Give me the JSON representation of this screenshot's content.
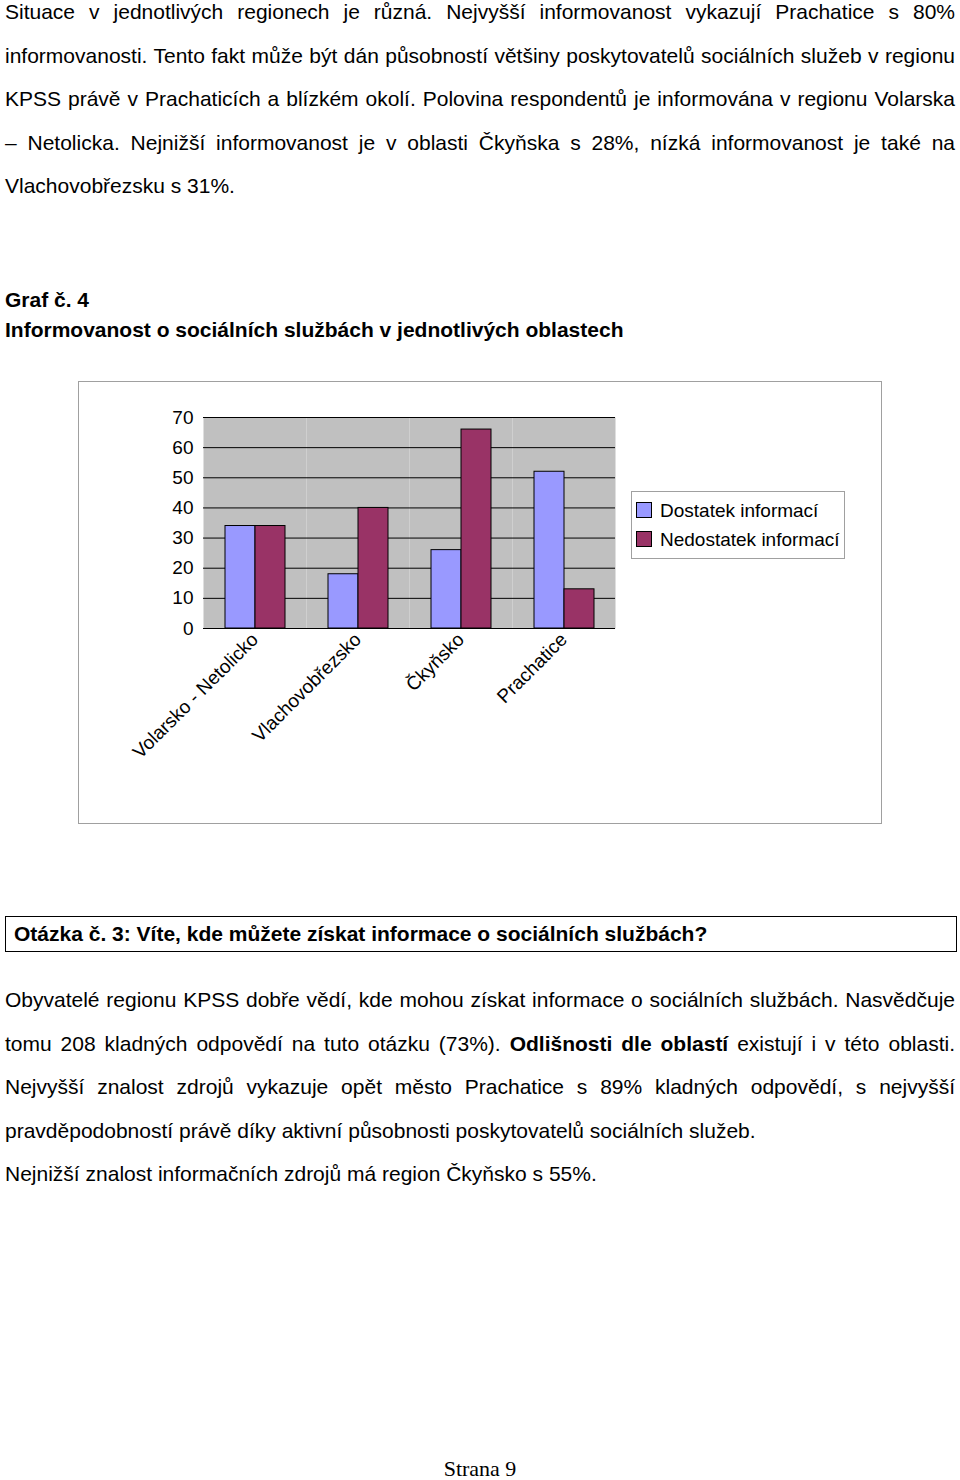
{
  "paragraphs_before": [
    [
      {
        "text": "Situace v jednotlivých regionech je různá. Nejvyšší informovanost vykazují Prachatice s 80% informovanosti. Tento fakt může být dán působností většiny poskytovatelů sociálních služeb v regionu KPSS právě v Prachaticích a blízkém okolí. Polovina respondentů je informována v regionu Volarska – Netolicka. Nejnižší informovanost je v oblasti Čkyňska s 28%, nízká informovanost je také na Vlachovobřezsku s 31%.",
        "bold": false
      }
    ]
  ],
  "figure_label": "Graf č. 4",
  "chart_data": {
    "type": "bar",
    "title": "Informovanost o sociálních službách v jednotlivých oblastech",
    "categories": [
      "Volarsko - Netolicko",
      "Vlachovobřezsko",
      "Čkyňsko",
      "Prachatice"
    ],
    "series": [
      {
        "name": "Dostatek informací",
        "color": "#9999ff",
        "values": [
          34,
          18,
          26,
          52
        ]
      },
      {
        "name": "Nedostatek informací",
        "color": "#993366",
        "values": [
          34,
          40,
          66,
          13
        ]
      }
    ],
    "ylim": [
      0,
      70
    ],
    "yticks": [
      0,
      10,
      20,
      30,
      40,
      50,
      60,
      70
    ],
    "grid": true,
    "legend": "right"
  },
  "question": "Otázka č. 3: Víte, kde můžete získat informace o sociálních službách?",
  "paragraphs_after": [
    [
      {
        "text": "Obyvatelé regionu KPSS dobře vědí, kde mohou získat informace o sociálních službách. Nasvědčuje tomu 208 kladných odpovědí na tuto otázku (73%). ",
        "bold": false
      },
      {
        "text": "Odlišnosti dle oblastí",
        "bold": true
      },
      {
        "text": " existují i v této oblasti. Nejvyšší znalost zdrojů vykazuje opět město Prachatice s 89% kladných odpovědí, s nejvyšší pravděpodobností právě díky aktivní působnosti poskytovatelů sociálních služeb.",
        "bold": false
      }
    ],
    [
      {
        "text": "Nejnižší znalost informačních zdrojů má region Čkyňsko s 55%.",
        "bold": false
      }
    ]
  ],
  "page_number": "Strana 9"
}
